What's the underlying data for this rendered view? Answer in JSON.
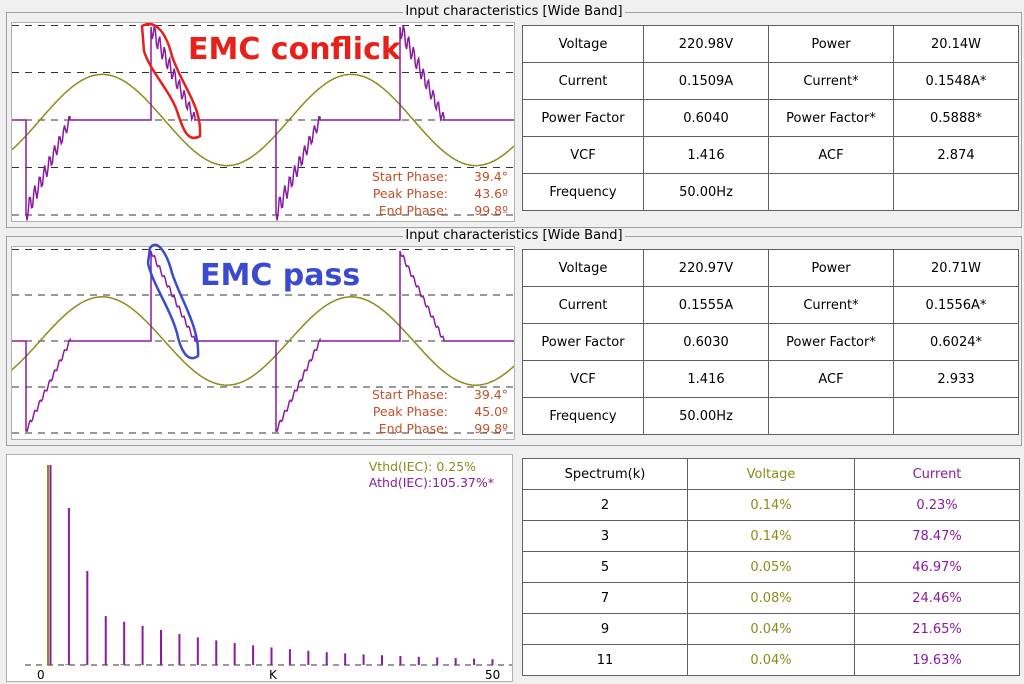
{
  "panel1": {
    "title": "Input characteristics [Wide Band]",
    "annotation": "EMC conflick",
    "annotation_color": "#e8201a",
    "phase": {
      "start_label": "Start Phase:",
      "start_value": "39.4°",
      "peak_label": "Peak Phase:",
      "peak_value": "43.6º",
      "end_label": "End Phase:",
      "end_value": "99.8º"
    },
    "table": {
      "voltage_label": "Voltage",
      "voltage": "220.98V",
      "power_label": "Power",
      "power": "20.14W",
      "current_label": "Current",
      "current": "0.1509A",
      "current_star_label": "Current*",
      "current_star": "0.1548A*",
      "pf_label": "Power Factor",
      "pf": "0.6040",
      "pf_star_label": "Power Factor*",
      "pf_star": "0.5888*",
      "vcf_label": "VCF",
      "vcf": "1.416",
      "acf_label": "ACF",
      "acf": "2.874",
      "freq_label": "Frequency",
      "freq": "50.00Hz"
    }
  },
  "panel2": {
    "title": "Input characteristics [Wide Band]",
    "annotation": "EMC pass",
    "annotation_color": "#3a4bd0",
    "phase": {
      "start_label": "Start Phase:",
      "start_value": "39.4°",
      "peak_label": "Peak Phase:",
      "peak_value": "45.0º",
      "end_label": "End Phase:",
      "end_value": "99.8º"
    },
    "table": {
      "voltage_label": "Voltage",
      "voltage": "220.97V",
      "power_label": "Power",
      "power": "20.71W",
      "current_label": "Current",
      "current": "0.1555A",
      "current_star_label": "Current*",
      "current_star": "0.1556A*",
      "pf_label": "Power Factor",
      "pf": "0.6030",
      "pf_star_label": "Power Factor*",
      "pf_star": "0.6024*",
      "vcf_label": "VCF",
      "vcf": "1.416",
      "acf_label": "ACF",
      "acf": "2.933",
      "freq_label": "Frequency",
      "freq": "50.00Hz"
    }
  },
  "spectrum": {
    "vthd_label": "Vthd(IEC):",
    "vthd": "0.25%",
    "athd_label": "Athd(IEC):",
    "athd": "105.37%*",
    "x_ticks": [
      "0",
      "K",
      "50"
    ],
    "colors": {
      "voltage": "#8c8c1a",
      "current": "#8a1aa0"
    },
    "table": {
      "headers": [
        "Spectrum(k)",
        "Voltage",
        "Current"
      ],
      "rows": [
        {
          "k": "2",
          "voltage": "0.14%",
          "current": "0.23%"
        },
        {
          "k": "3",
          "voltage": "0.14%",
          "current": "78.47%"
        },
        {
          "k": "5",
          "voltage": "0.05%",
          "current": "46.97%"
        },
        {
          "k": "7",
          "voltage": "0.08%",
          "current": "24.46%"
        },
        {
          "k": "9",
          "voltage": "0.04%",
          "current": "21.65%"
        },
        {
          "k": "11",
          "voltage": "0.04%",
          "current": "19.63%"
        }
      ]
    },
    "bars": {
      "harmonic_k": [
        1,
        3,
        5,
        7,
        9,
        11,
        13,
        15,
        17,
        19,
        21,
        23,
        25,
        27,
        29,
        31,
        33,
        35,
        37,
        39,
        41,
        43,
        45,
        47,
        49
      ],
      "current_pct": [
        100,
        78.47,
        46.97,
        24.46,
        21.65,
        19.63,
        17.5,
        15.5,
        13.8,
        12.3,
        11.0,
        9.8,
        8.8,
        7.9,
        7.1,
        6.4,
        5.8,
        5.3,
        4.9,
        4.5,
        4.1,
        3.8,
        3.5,
        3.2,
        2.9
      ],
      "voltage_pct": [
        100,
        0.14,
        0.05,
        0.08,
        0.04,
        0.04
      ]
    }
  },
  "colors": {
    "voltage_wave": "#8c8c1a",
    "current_wave": "#8a1aa0",
    "phase_text": "#c0502a"
  }
}
